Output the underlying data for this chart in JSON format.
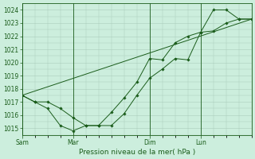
{
  "background_color": "#cceedd",
  "grid_color": "#aaccbb",
  "line_color": "#1a5c1a",
  "marker_color": "#1a5c1a",
  "xlabel": "Pression niveau de la mer( hPa )",
  "ylim": [
    1014.5,
    1024.5
  ],
  "yticks": [
    1015,
    1016,
    1017,
    1018,
    1019,
    1020,
    1021,
    1022,
    1023,
    1024
  ],
  "xtick_labels": [
    "Sam",
    "Mar",
    "Dim",
    "Lun"
  ],
  "xtick_positions": [
    0,
    36,
    90,
    126
  ],
  "xlim": [
    0,
    162
  ],
  "vline_positions": [
    0,
    36,
    90,
    126
  ],
  "series1_x": [
    0,
    9,
    18,
    27,
    36,
    45,
    54,
    63,
    72,
    81,
    90,
    99,
    108,
    117,
    126,
    135,
    144,
    153,
    162
  ],
  "series1_y": [
    1017.5,
    1017.0,
    1017.0,
    1016.5,
    1015.8,
    1015.2,
    1015.2,
    1015.2,
    1016.1,
    1017.5,
    1018.8,
    1019.5,
    1020.3,
    1020.2,
    1022.3,
    1022.4,
    1023.0,
    1023.3,
    1023.3
  ],
  "series2_x": [
    0,
    9,
    18,
    27,
    36,
    45,
    54,
    63,
    72,
    81,
    90,
    99,
    108,
    117,
    126,
    135,
    144,
    153,
    162
  ],
  "series2_y": [
    1017.5,
    1017.0,
    1016.5,
    1015.2,
    1014.8,
    1015.2,
    1015.2,
    1016.2,
    1017.3,
    1018.5,
    1020.3,
    1020.2,
    1021.5,
    1022.0,
    1022.3,
    1024.0,
    1024.0,
    1023.3,
    1023.3
  ],
  "series3_x": [
    0,
    162
  ],
  "series3_y": [
    1017.5,
    1023.3
  ],
  "axis_color": "#1a5c1a",
  "label_fontsize": 6.5,
  "tick_fontsize": 5.5
}
